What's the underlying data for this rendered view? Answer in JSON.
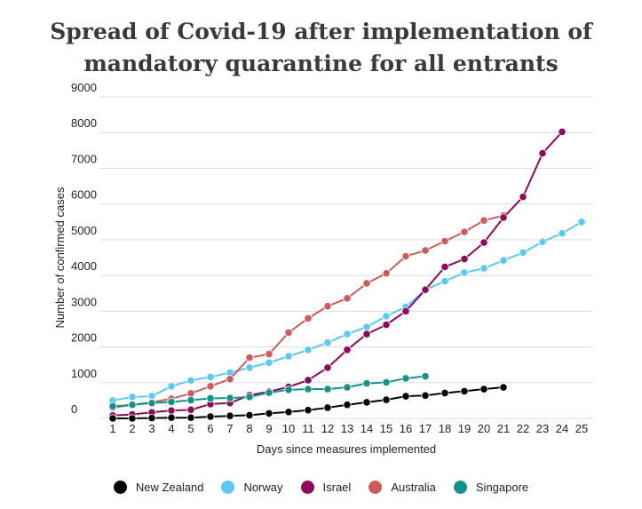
{
  "chart_data": {
    "type": "line",
    "title_line1": "Spread of Covid-19 after implementation of",
    "title_line2": "mandatory quarantine for all entrants",
    "xlabel": "Days since measures implemented",
    "ylabel": "Number of confirmed cases",
    "x": [
      1,
      2,
      3,
      4,
      5,
      6,
      7,
      8,
      9,
      10,
      11,
      12,
      13,
      14,
      15,
      16,
      17,
      18,
      19,
      20,
      21,
      22,
      23,
      24,
      25
    ],
    "xlim": [
      1,
      25
    ],
    "ylim": [
      0,
      9000
    ],
    "yticks": [
      0,
      1000,
      2000,
      3000,
      4000,
      5000,
      6000,
      7000,
      8000,
      9000
    ],
    "grid": "horizontal",
    "legend_position": "bottom",
    "series": [
      {
        "name": "Norway",
        "color": "#5bc8f5",
        "values": [
          500,
          600,
          620,
          900,
          1060,
          1160,
          1280,
          1420,
          1560,
          1740,
          1920,
          2120,
          2360,
          2560,
          2860,
          3120,
          3600,
          3840,
          4080,
          4200,
          4420,
          4640,
          4940,
          5180,
          5500
        ]
      },
      {
        "name": "Australia",
        "color": "#cc5c5c",
        "values": [
          300,
          380,
          450,
          550,
          700,
          900,
          1100,
          1700,
          1800,
          2400,
          2800,
          3140,
          3360,
          3780,
          4060,
          4540,
          4700,
          4960,
          5220,
          5540,
          5680,
          null,
          null,
          null,
          null
        ]
      },
      {
        "name": "Israel",
        "color": "#8b0a5a",
        "values": [
          80,
          110,
          170,
          220,
          240,
          400,
          430,
          650,
          750,
          880,
          1070,
          1420,
          1920,
          2360,
          2620,
          3000,
          3600,
          4240,
          4460,
          4920,
          5620,
          6200,
          7420,
          8020,
          null
        ]
      },
      {
        "name": "Singapore",
        "color": "#13928a",
        "values": [
          340,
          380,
          430,
          460,
          510,
          560,
          570,
          600,
          720,
          800,
          820,
          820,
          870,
          980,
          1010,
          1120,
          1180,
          null,
          null,
          null,
          null,
          null,
          null,
          null,
          null
        ]
      },
      {
        "name": "New Zealand",
        "color": "#000000",
        "values": [
          0,
          0,
          10,
          20,
          20,
          50,
          70,
          90,
          140,
          180,
          230,
          300,
          380,
          450,
          520,
          620,
          640,
          710,
          760,
          820,
          870,
          null,
          null,
          null,
          null
        ]
      }
    ],
    "legend_order": [
      "New Zealand",
      "Norway",
      "Israel",
      "Australia",
      "Singapore"
    ]
  }
}
